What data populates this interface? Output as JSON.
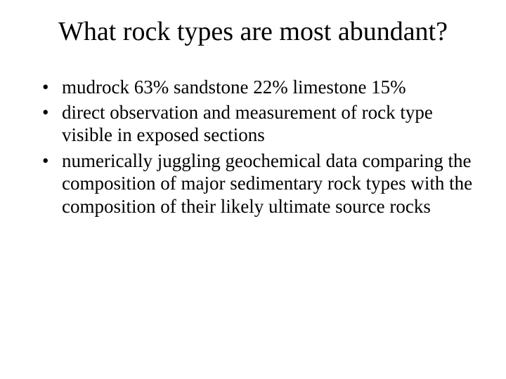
{
  "slide": {
    "title": "What rock types are most abundant?",
    "title_fontsize": 38,
    "body_fontsize": 27,
    "background_color": "#ffffff",
    "text_color": "#000000",
    "font_family": "Times New Roman",
    "bullets": [
      "mudrock 63% sandstone 22% limestone 15%",
      "direct observation and measurement of rock type visible in exposed sections",
      "numerically juggling geochemical data comparing the composition of major sedimentary rock types with the composition of their likely ultimate source rocks"
    ]
  }
}
